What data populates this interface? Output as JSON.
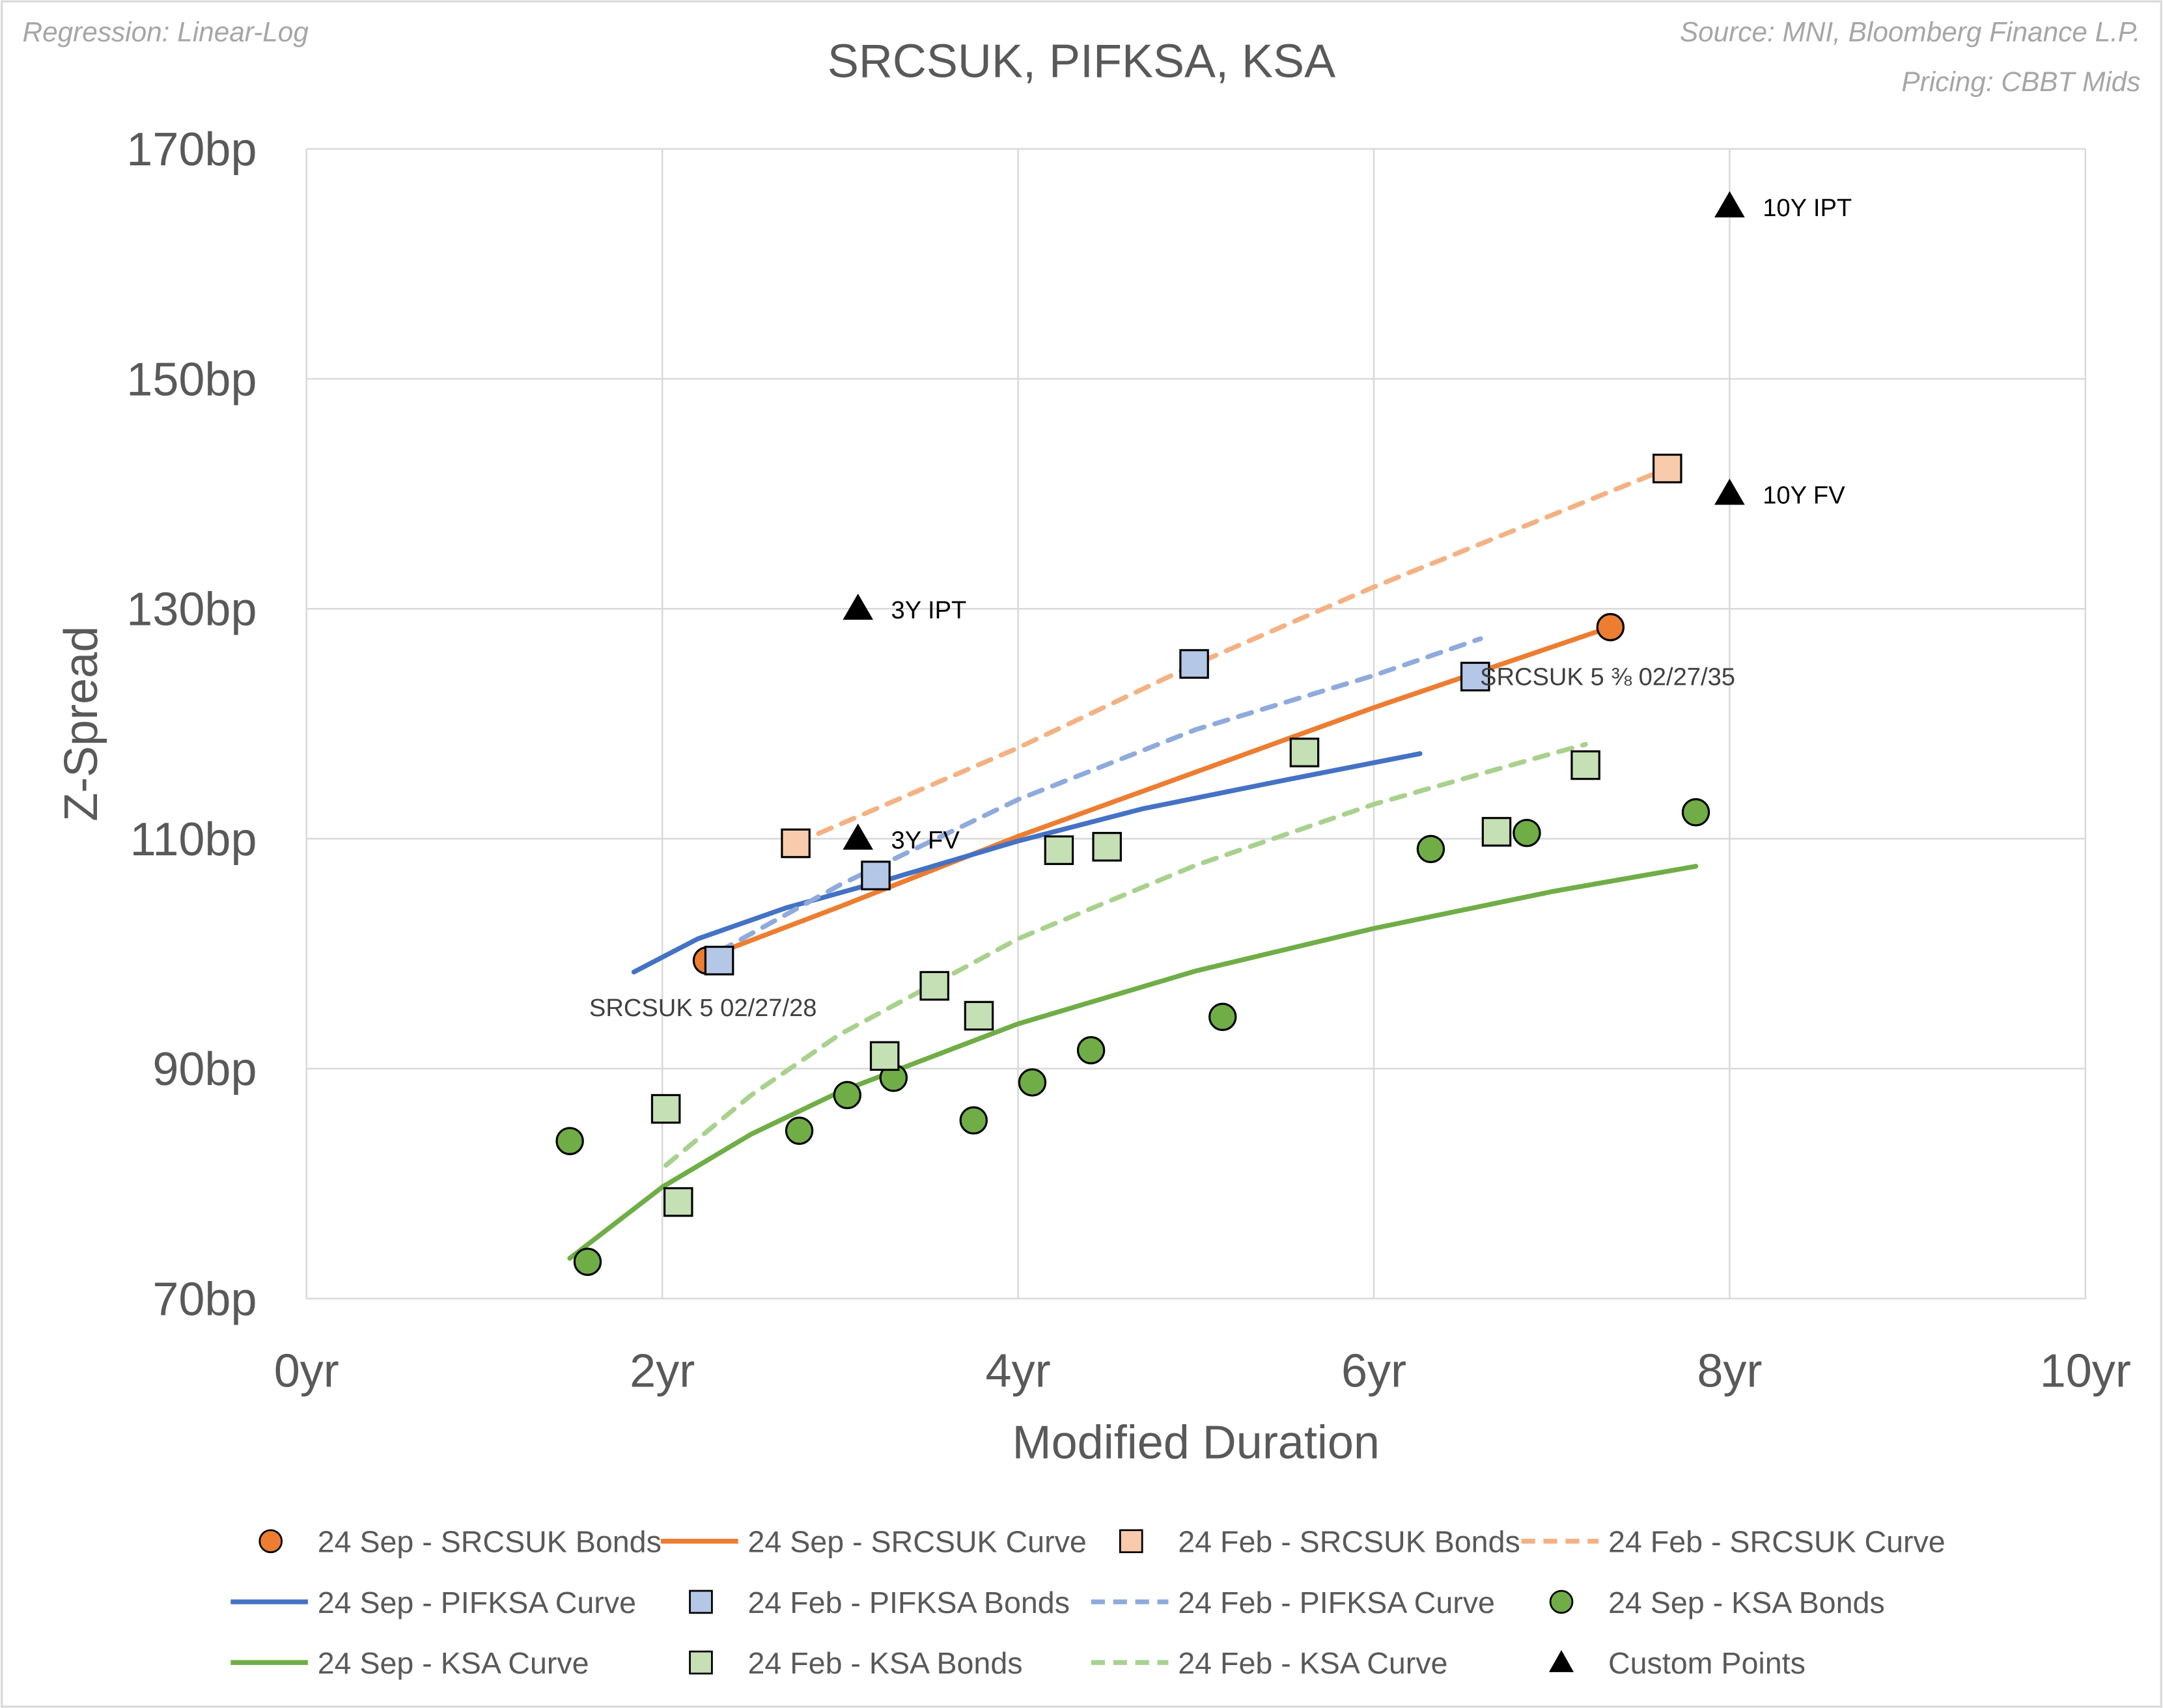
{
  "chart_data": {
    "type": "scatter",
    "title": "SRCSUK, PIFKSA, KSA",
    "notes": {
      "regression": "Regression: Linear-Log",
      "source": "Source: MNI, Bloomberg Finance L.P.",
      "pricing": "Pricing: CBBT Mids"
    },
    "xlabel": "Modified Duration",
    "ylabel": "Z-Spread",
    "xlim": [
      0,
      10
    ],
    "ylim": [
      70,
      170
    ],
    "x_ticks": [
      0,
      2,
      4,
      6,
      8,
      10
    ],
    "x_tick_labels": [
      "0yr",
      "2yr",
      "4yr",
      "6yr",
      "8yr",
      "10yr"
    ],
    "y_ticks": [
      70,
      90,
      110,
      130,
      150,
      170
    ],
    "y_tick_labels": [
      "70bp",
      "90bp",
      "110bp",
      "130bp",
      "150bp",
      "170bp"
    ],
    "grid": true,
    "legend_position": "bottom",
    "series": [
      {
        "name": "24 Sep - SRCSUK Bonds",
        "kind": "points",
        "marker": "circle",
        "color": "#ED7D31",
        "points": [
          [
            2.25,
            99.4
          ],
          [
            7.33,
            128.4
          ]
        ]
      },
      {
        "name": "24 Sep - SRCSUK Curve",
        "kind": "line",
        "dash": false,
        "color": "#ED7D31",
        "points": [
          [
            2.2,
            99.4
          ],
          [
            3,
            104.1
          ],
          [
            4,
            110.2
          ],
          [
            5,
            115.8
          ],
          [
            6,
            121.4
          ],
          [
            7.33,
            128.4
          ]
        ]
      },
      {
        "name": "24 Feb - SRCSUK Bonds",
        "kind": "points",
        "marker": "square",
        "color": "#F8CBAD",
        "points": [
          [
            2.75,
            109.6
          ],
          [
            7.65,
            142.2
          ]
        ]
      },
      {
        "name": "24 Feb - SRCSUK Curve",
        "kind": "line",
        "dash": true,
        "color": "#F4B183",
        "points": [
          [
            2.75,
            109.6
          ],
          [
            4,
            117.9
          ],
          [
            5,
            125.2
          ],
          [
            6,
            131.9
          ],
          [
            7.65,
            142.2
          ]
        ]
      },
      {
        "name": "24 Sep - PIFKSA Curve",
        "kind": "line",
        "dash": false,
        "color": "#4472C4",
        "points": [
          [
            1.84,
            98.4
          ],
          [
            2.2,
            101.3
          ],
          [
            2.7,
            104.0
          ],
          [
            3.3,
            106.6
          ],
          [
            4,
            109.8
          ],
          [
            4.7,
            112.6
          ],
          [
            5.5,
            115.1
          ],
          [
            6.26,
            117.4
          ]
        ]
      },
      {
        "name": "24 Feb - PIFKSA Bonds",
        "kind": "points",
        "marker": "square",
        "color": "#B4C7E7",
        "points": [
          [
            2.32,
            99.4
          ],
          [
            3.2,
            106.8
          ],
          [
            4.99,
            125.2
          ],
          [
            6.57,
            124.1
          ]
        ]
      },
      {
        "name": "24 Feb - PIFKSA Curve",
        "kind": "line",
        "dash": true,
        "color": "#8FAADC",
        "points": [
          [
            2.32,
            100.2
          ],
          [
            3,
            106.0
          ],
          [
            4,
            113.4
          ],
          [
            5,
            119.5
          ],
          [
            6,
            124.2
          ],
          [
            6.6,
            127.4
          ]
        ]
      },
      {
        "name": "24 Sep - KSA Bonds",
        "kind": "points",
        "marker": "circle",
        "color": "#70AD47",
        "points": [
          [
            1.48,
            83.7
          ],
          [
            1.58,
            73.2
          ],
          [
            2.77,
            84.6
          ],
          [
            3.04,
            87.7
          ],
          [
            3.3,
            89.2
          ],
          [
            3.75,
            85.5
          ],
          [
            4.08,
            88.8
          ],
          [
            4.41,
            91.6
          ],
          [
            5.15,
            94.5
          ],
          [
            6.32,
            109.1
          ],
          [
            6.86,
            110.5
          ],
          [
            7.81,
            112.3
          ]
        ]
      },
      {
        "name": "24 Sep - KSA Curve",
        "kind": "line",
        "dash": false,
        "color": "#70AD47",
        "points": [
          [
            1.48,
            73.5
          ],
          [
            2,
            79.7
          ],
          [
            2.5,
            84.3
          ],
          [
            3,
            88.0
          ],
          [
            4,
            93.9
          ],
          [
            5,
            98.5
          ],
          [
            6,
            102.2
          ],
          [
            7,
            105.4
          ],
          [
            7.81,
            107.6
          ]
        ]
      },
      {
        "name": "24 Feb - KSA Bonds",
        "kind": "points",
        "marker": "square",
        "color": "#C5E0B4",
        "points": [
          [
            2.02,
            86.5
          ],
          [
            2.09,
            78.4
          ],
          [
            3.25,
            91.1
          ],
          [
            3.53,
            97.2
          ],
          [
            3.78,
            94.6
          ],
          [
            4.23,
            109.0
          ],
          [
            4.5,
            109.3
          ],
          [
            5.61,
            117.5
          ],
          [
            6.69,
            110.6
          ],
          [
            7.19,
            116.4
          ]
        ]
      },
      {
        "name": "24 Feb - KSA Curve",
        "kind": "line",
        "dash": true,
        "color": "#A9D18E",
        "points": [
          [
            2.02,
            81.6
          ],
          [
            2.5,
            87.7
          ],
          [
            3,
            93.0
          ],
          [
            4,
            101.3
          ],
          [
            5,
            107.7
          ],
          [
            6,
            113.0
          ],
          [
            7,
            117.4
          ],
          [
            7.19,
            118.2
          ]
        ]
      },
      {
        "name": "Custom Points",
        "kind": "points",
        "marker": "triangle",
        "color": "#000000",
        "points": [
          [
            3.1,
            130,
            "3Y IPT"
          ],
          [
            3.1,
            110,
            "3Y FV"
          ],
          [
            8,
            165,
            "10Y IPT"
          ],
          [
            8,
            140,
            "10Y FV"
          ]
        ]
      }
    ],
    "annotations": [
      {
        "text": "SRCSUK 5 02/27/28",
        "x": 2.25,
        "y": 99.4
      },
      {
        "text": "SRCSUK 5 ⅜ 02/27/35",
        "x": 6.57,
        "y": 124.1
      }
    ],
    "legend_order": [
      0,
      1,
      2,
      3,
      4,
      5,
      6,
      7,
      8,
      9,
      10,
      11
    ]
  }
}
